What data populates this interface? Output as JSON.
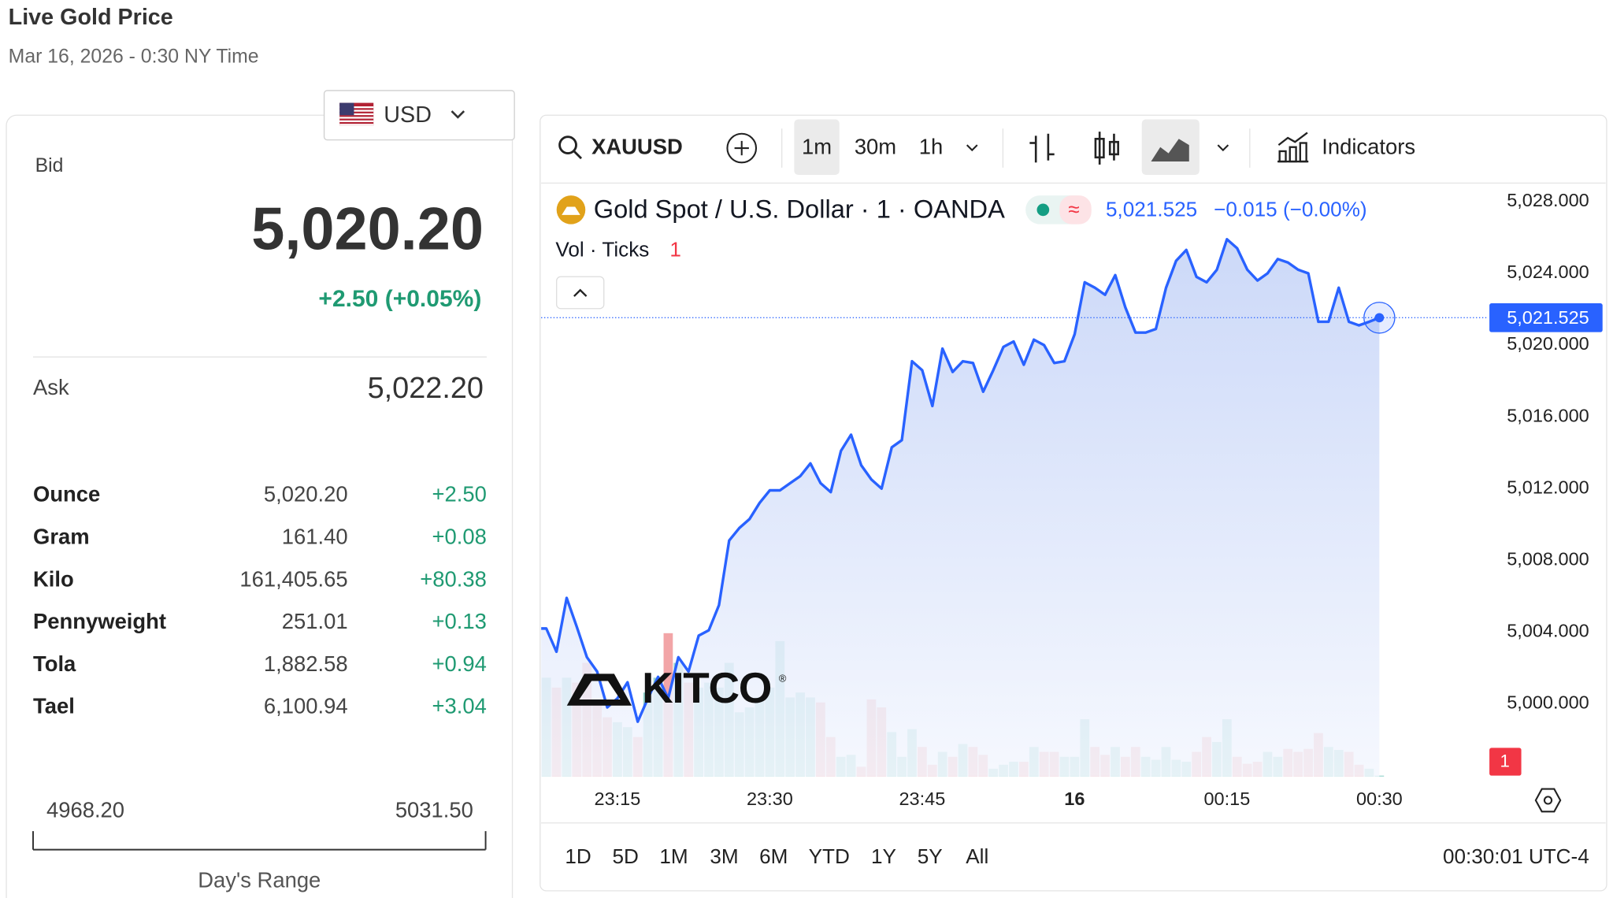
{
  "header": {
    "title": "Live Gold Price",
    "date": "Mar 16, 2026 - 0:30 NY Time"
  },
  "currency": "USD",
  "quote": {
    "bid_label": "Bid",
    "bid": "5,020.20",
    "change": "+2.50 (+0.05%)",
    "ask_label": "Ask",
    "ask": "5,022.20"
  },
  "table": {
    "rows": [
      [
        "Ounce",
        "5,020.20",
        "+2.50"
      ],
      [
        "Gram",
        "161.40",
        "+0.08"
      ],
      [
        "Kilo",
        "161,405.65",
        "+80.38"
      ],
      [
        "Pennyweight",
        "251.01",
        "+0.13"
      ],
      [
        "Tola",
        "1,882.58",
        "+0.94"
      ],
      [
        "Tael",
        "6,100.94",
        "+3.04"
      ]
    ]
  },
  "day_range": {
    "low": "4968.20",
    "high": "5031.50",
    "label": "Day's Range"
  },
  "toolbar": {
    "symbol": "XAUUSD",
    "intervals": [
      "1m",
      "30m",
      "1h"
    ],
    "indicators": "Indicators"
  },
  "ranges": [
    "1D",
    "5D",
    "1M",
    "3M",
    "6M",
    "YTD",
    "1Y",
    "5Y",
    "All"
  ],
  "clock": "00:30:01 UTC-4",
  "chart_data": {
    "type": "line",
    "watermark": "KITCO",
    "categories": [
      null,
      null,
      null,
      null,
      null,
      null,
      null,
      "23:15",
      null,
      null,
      null,
      null,
      null,
      null,
      null,
      null,
      null,
      null,
      null,
      null,
      null,
      null,
      "23:30",
      null,
      null,
      null,
      null,
      null,
      null,
      null,
      null,
      null,
      null,
      null,
      null,
      null,
      null,
      "23:45",
      null,
      null,
      null,
      null,
      null,
      null,
      null,
      null,
      null,
      null,
      null,
      null,
      null,
      null,
      "16",
      null,
      null,
      null,
      null,
      null,
      null,
      null,
      null,
      null,
      null,
      null,
      null,
      null,
      null,
      "00:15",
      null,
      null,
      null,
      null,
      null,
      null,
      null,
      null,
      null,
      null,
      null,
      null,
      null,
      null,
      "00:30"
    ],
    "series": [
      {
        "name": "Gold Spot / U.S. Dollar · 1 · OANDA",
        "color": "#2962ff",
        "values": [
          5004.2,
          5002.9,
          5005.9,
          5004.3,
          5002.6,
          5001.8,
          4999.8,
          5000.3,
          5001.2,
          4999.0,
          5000.3,
          5001.5,
          5000.3,
          5002.6,
          5001.8,
          5003.8,
          5004.1,
          5005.5,
          5009.1,
          5009.8,
          5010.3,
          5011.2,
          5011.9,
          5011.9,
          5012.3,
          5012.7,
          5013.4,
          5012.3,
          5011.8,
          5014.1,
          5015.0,
          5013.3,
          5012.5,
          5012.0,
          5014.3,
          5014.7,
          5019.1,
          5018.6,
          5016.6,
          5019.8,
          5018.5,
          5019.1,
          5019.0,
          5017.4,
          5018.6,
          5019.9,
          5020.2,
          5018.9,
          5020.3,
          5020.0,
          5019.0,
          5019.1,
          5020.6,
          5023.5,
          5023.2,
          5022.8,
          5023.9,
          5022.1,
          5020.7,
          5020.7,
          5020.9,
          5023.2,
          5024.7,
          5025.3,
          5023.8,
          5023.5,
          5024.2,
          5025.9,
          5025.4,
          5024.2,
          5023.6,
          5024.0,
          5024.8,
          5024.6,
          5024.2,
          5024.0,
          5021.3,
          5021.3,
          5023.2,
          5021.3,
          5021.1,
          5021.3,
          5021.525
        ]
      },
      {
        "name": "Vol · Ticks",
        "axis": "y2",
        "up_color": "#93d3cc",
        "down_color": "#f2a5a7",
        "values": [
          100,
          90,
          100,
          95,
          115,
          75,
          60,
          55,
          50,
          40,
          85,
          100,
          145,
          115,
          95,
          90,
          95,
          90,
          115,
          65,
          70,
          80,
          90,
          137,
          80,
          85,
          80,
          75,
          40,
          20,
          22,
          10,
          78,
          70,
          45,
          20,
          48,
          30,
          12,
          25,
          20,
          33,
          30,
          22,
          8,
          12,
          15,
          15,
          30,
          25,
          25,
          20,
          20,
          58,
          30,
          22,
          30,
          20,
          30,
          20,
          17,
          30,
          17,
          15,
          25,
          40,
          35,
          58,
          20,
          13,
          15,
          25,
          20,
          28,
          25,
          28,
          44,
          30,
          27,
          25,
          12,
          8,
          1
        ]
      }
    ],
    "last_value_label": "5,021.525",
    "change": "−0.015 (−0.00%)",
    "ylim": [
      4995.94,
      5029.03
    ],
    "yticks": [
      {
        "value": 5000,
        "label": "5,000.000"
      },
      {
        "value": 5004,
        "label": "5,004.000"
      },
      {
        "value": 5008,
        "label": "5,008.000"
      },
      {
        "value": 5012,
        "label": "5,012.000"
      },
      {
        "value": 5016,
        "label": "5,016.000"
      },
      {
        "value": 5020,
        "label": "5,020.000"
      },
      {
        "value": 5024,
        "label": "5,024.000"
      },
      {
        "value": 5028,
        "label": "5,028.000"
      }
    ],
    "y2lim": [
      0,
      600
    ],
    "grid": false
  }
}
